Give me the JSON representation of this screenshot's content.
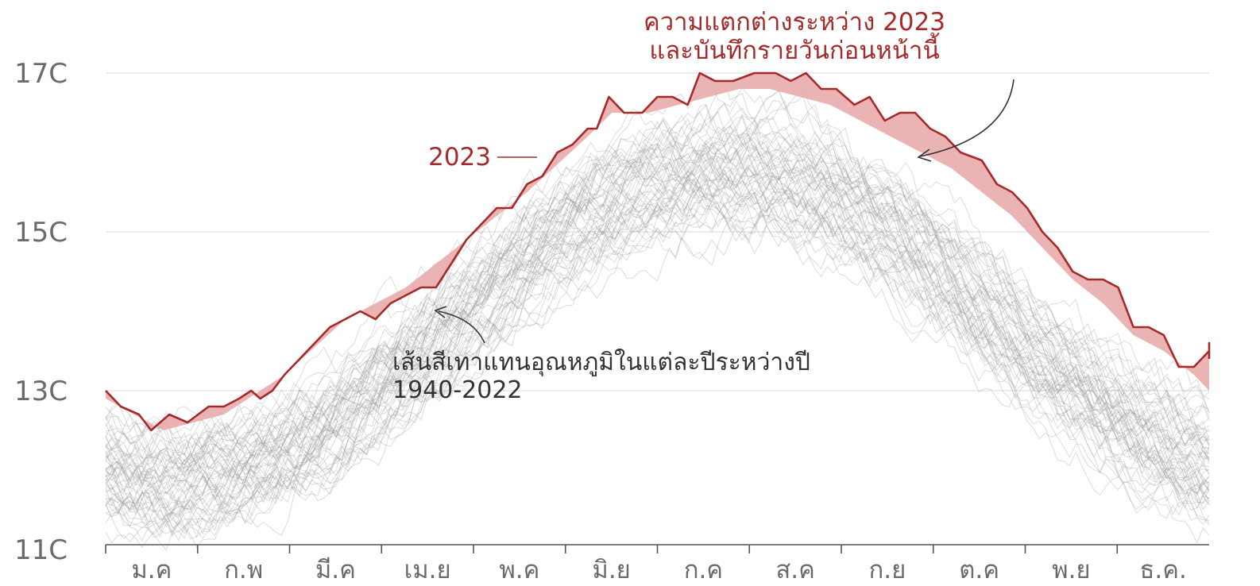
{
  "chart_data": {
    "type": "line",
    "y_unit": "C",
    "ylim": [
      11,
      17.6
    ],
    "y_ticks": [
      {
        "value": 11,
        "label": "11C"
      },
      {
        "value": 13,
        "label": "13C"
      },
      {
        "value": 15,
        "label": "15C"
      },
      {
        "value": 17,
        "label": "17C"
      }
    ],
    "x_ticks": [
      "ม.ค",
      "ก.พ",
      "มี.ค",
      "เม.ย",
      "พ.ค",
      "มิ.ย",
      "ก.ค",
      "ส.ค",
      "ก.ย",
      "ต.ค",
      "พ.ย",
      "ธ.ค."
    ],
    "grid": true,
    "day_range": [
      1,
      365
    ],
    "series_2023": {
      "name": "2023",
      "color": "#a52a2a",
      "points": [
        [
          1,
          13.0
        ],
        [
          6,
          12.8
        ],
        [
          12,
          12.7
        ],
        [
          16,
          12.5
        ],
        [
          22,
          12.7
        ],
        [
          28,
          12.6
        ],
        [
          35,
          12.8
        ],
        [
          40,
          12.8
        ],
        [
          45,
          12.9
        ],
        [
          49,
          13.0
        ],
        [
          52,
          12.9
        ],
        [
          56,
          13.0
        ],
        [
          60,
          13.2
        ],
        [
          65,
          13.4
        ],
        [
          70,
          13.6
        ],
        [
          75,
          13.8
        ],
        [
          80,
          13.9
        ],
        [
          85,
          14.0
        ],
        [
          90,
          13.9
        ],
        [
          95,
          14.1
        ],
        [
          100,
          14.2
        ],
        [
          105,
          14.3
        ],
        [
          110,
          14.3
        ],
        [
          115,
          14.6
        ],
        [
          120,
          14.9
        ],
        [
          125,
          15.1
        ],
        [
          130,
          15.3
        ],
        [
          135,
          15.3
        ],
        [
          140,
          15.6
        ],
        [
          145,
          15.7
        ],
        [
          150,
          16.0
        ],
        [
          155,
          16.1
        ],
        [
          160,
          16.3
        ],
        [
          163,
          16.3
        ],
        [
          167,
          16.7
        ],
        [
          172,
          16.5
        ],
        [
          178,
          16.5
        ],
        [
          183,
          16.7
        ],
        [
          188,
          16.7
        ],
        [
          193,
          16.6
        ],
        [
          197,
          17.0
        ],
        [
          202,
          16.9
        ],
        [
          208,
          16.9
        ],
        [
          215,
          17.0
        ],
        [
          222,
          17.0
        ],
        [
          227,
          16.9
        ],
        [
          232,
          17.0
        ],
        [
          237,
          16.8
        ],
        [
          242,
          16.8
        ],
        [
          248,
          16.6
        ],
        [
          253,
          16.7
        ],
        [
          258,
          16.4
        ],
        [
          263,
          16.5
        ],
        [
          268,
          16.5
        ],
        [
          273,
          16.3
        ],
        [
          278,
          16.2
        ],
        [
          283,
          16.0
        ],
        [
          290,
          15.9
        ],
        [
          295,
          15.6
        ],
        [
          300,
          15.5
        ],
        [
          305,
          15.3
        ],
        [
          310,
          15.0
        ],
        [
          315,
          14.8
        ],
        [
          320,
          14.5
        ],
        [
          325,
          14.4
        ],
        [
          330,
          14.4
        ],
        [
          335,
          14.3
        ],
        [
          340,
          13.8
        ],
        [
          345,
          13.8
        ],
        [
          350,
          13.7
        ],
        [
          355,
          13.3
        ],
        [
          360,
          13.3
        ],
        [
          365,
          13.5
        ],
        [
          371,
          13.6
        ],
        [
          375,
          13.4
        ]
      ]
    },
    "previous_record_points": [
      [
        1,
        12.9
      ],
      [
        20,
        12.5
      ],
      [
        40,
        12.7
      ],
      [
        60,
        13.2
      ],
      [
        80,
        13.9
      ],
      [
        100,
        14.3
      ],
      [
        120,
        14.9
      ],
      [
        140,
        15.5
      ],
      [
        160,
        16.2
      ],
      [
        168,
        16.5
      ],
      [
        180,
        16.5
      ],
      [
        190,
        16.6
      ],
      [
        200,
        16.7
      ],
      [
        210,
        16.8
      ],
      [
        220,
        16.8
      ],
      [
        230,
        16.7
      ],
      [
        240,
        16.6
      ],
      [
        250,
        16.4
      ],
      [
        260,
        16.2
      ],
      [
        270,
        16.0
      ],
      [
        280,
        15.8
      ],
      [
        290,
        15.5
      ],
      [
        300,
        15.2
      ],
      [
        310,
        14.8
      ],
      [
        320,
        14.4
      ],
      [
        330,
        14.1
      ],
      [
        340,
        13.7
      ],
      [
        350,
        13.5
      ],
      [
        360,
        13.2
      ],
      [
        370,
        13.0
      ],
      [
        375,
        13.0
      ]
    ],
    "gray_lines_note": {
      "label": "เส้นสีเทาแทนอุณหภูมิในแต่ละปีระหว่างปี",
      "label2": "1940-2022",
      "years": [
        1940,
        2022
      ],
      "mean_min": 11.9,
      "mean_max": 15.8,
      "spread": 0.4
    },
    "annotations": {
      "line_2023": "2023",
      "gap_title_line1": "ความแตกต่างระหว่าง 2023",
      "gap_title_line2": "และบันทึกรายวันก่อนหน้านี้"
    },
    "colors": {
      "gap_fill": "#e8a7a7",
      "gray": "#9a9a9a",
      "grid": "#d9d9d9",
      "axis": "#555555",
      "text_red": "#a52a2a",
      "text_dark": "#333333"
    }
  }
}
